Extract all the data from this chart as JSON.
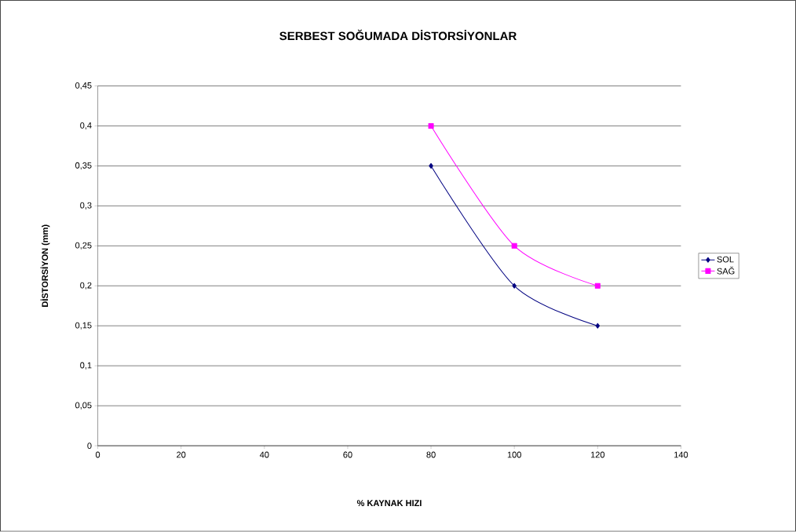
{
  "chart_data": {
    "type": "line",
    "title": "SERBEST SOĞUMADA DİSTORSİYONLAR",
    "xlabel": "% KAYNAK HIZI",
    "ylabel": "DİSTORSİYON (mm)",
    "x": [
      80,
      100,
      120
    ],
    "series": [
      {
        "name": "SOL",
        "color": "#000080",
        "marker": "diamond",
        "values": [
          0.35,
          0.2,
          0.15
        ]
      },
      {
        "name": "SAĞ",
        "color": "#ff00ff",
        "marker": "square",
        "values": [
          0.4,
          0.25,
          0.2
        ]
      }
    ],
    "xlim": [
      0,
      140
    ],
    "xticks": [
      0,
      20,
      40,
      60,
      80,
      100,
      120,
      140
    ],
    "ylim": [
      0,
      0.45
    ],
    "yticks": [
      0,
      {
        "value": 0.05,
        "label": "0,05"
      },
      {
        "value": 0.1,
        "label": "0,1"
      },
      {
        "value": 0.15,
        "label": "0,15"
      },
      {
        "value": 0.2,
        "label": "0,2"
      },
      {
        "value": 0.25,
        "label": "0,25"
      },
      {
        "value": 0.3,
        "label": "0,3"
      },
      {
        "value": 0.35,
        "label": "0,35"
      },
      {
        "value": 0.4,
        "label": "0,4"
      },
      {
        "value": 0.45,
        "label": "0,45"
      }
    ],
    "grid": "y",
    "legend": "right",
    "line_style": "solid"
  }
}
